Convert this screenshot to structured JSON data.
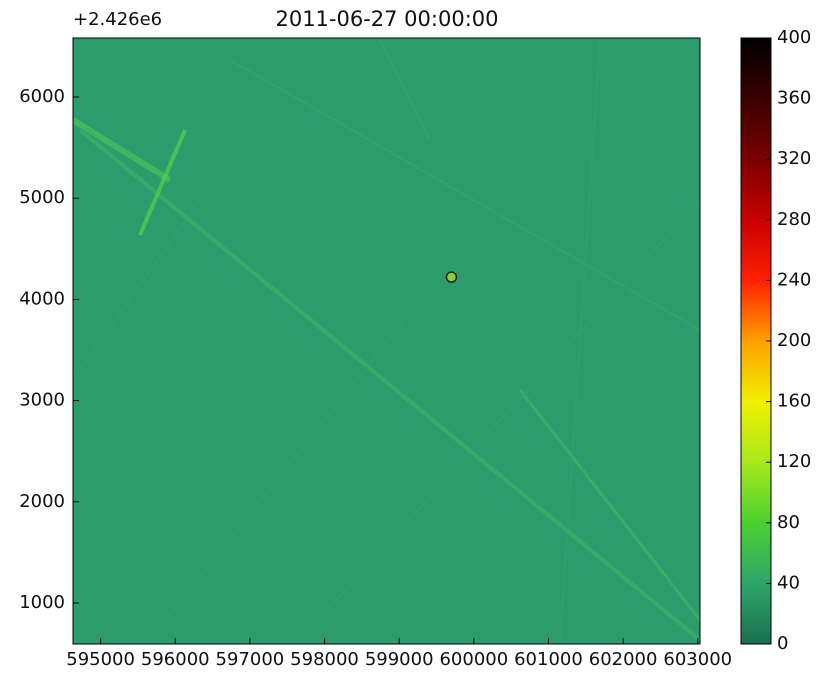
{
  "chart_data": {
    "type": "heatmap",
    "title": "2011-06-27 00:00:00",
    "offset_label": "+2.426e6",
    "xlim": [
      594630,
      603030
    ],
    "xticks": [
      595000,
      596000,
      597000,
      598000,
      599000,
      600000,
      601000,
      602000,
      603000
    ],
    "ylim": [
      595,
      6583
    ],
    "yticks": [
      1000,
      2000,
      3000,
      4000,
      5000,
      6000
    ],
    "field": {
      "value": 28,
      "color": "#2c9c6d"
    },
    "marker": {
      "x": 599700,
      "y": 4220,
      "color": "#86d03a"
    },
    "colorbar": {
      "lim": [
        0,
        400
      ],
      "ticks": [
        0,
        40,
        80,
        120,
        160,
        200,
        240,
        280,
        320,
        360,
        400
      ],
      "colors": [
        "#1a7050",
        "#2ea56a",
        "#4cd030",
        "#a8e81c",
        "#f0f000",
        "#ffa000",
        "#ff2000",
        "#c80000",
        "#7a0000",
        "#3a0000",
        "#000000"
      ]
    }
  }
}
